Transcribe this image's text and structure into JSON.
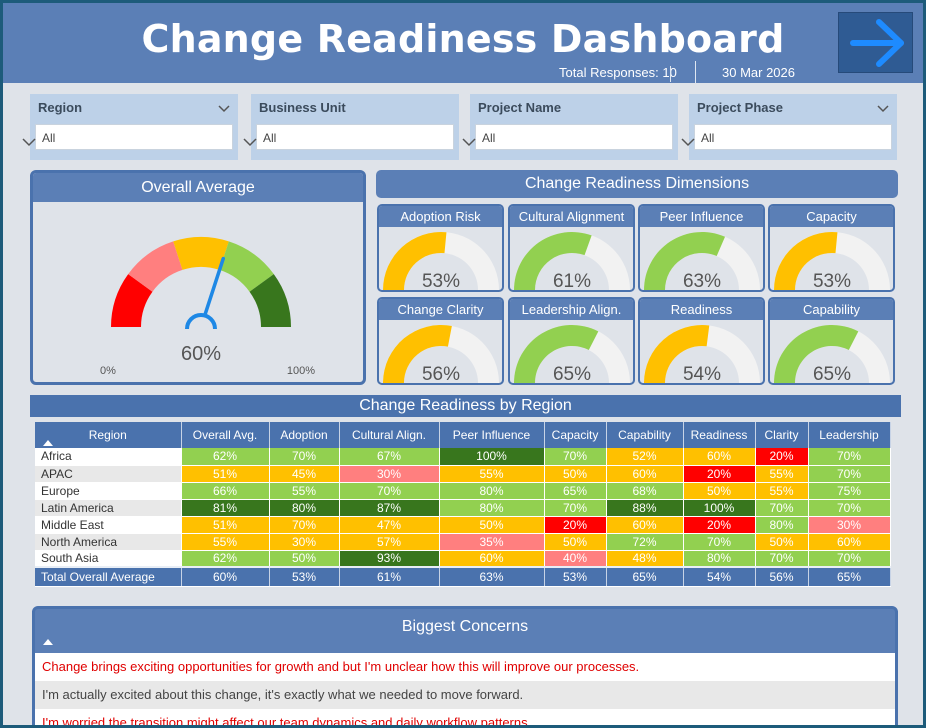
{
  "header": {
    "title": "Change Readiness Dashboard",
    "total_responses": "Total Responses: 10",
    "date": "30 Mar 2026",
    "nav_icon": "arrow-right-icon"
  },
  "filters": [
    {
      "label": "Region",
      "value": "All",
      "has_top_chevron": true
    },
    {
      "label": "Business Unit",
      "value": "All",
      "has_top_chevron": false
    },
    {
      "label": "Project Name",
      "value": "All",
      "has_top_chevron": false
    },
    {
      "label": "Project Phase",
      "value": "All",
      "has_top_chevron": true
    }
  ],
  "overall": {
    "title": "Overall Average",
    "value": 60,
    "value_label": "60%",
    "min_label": "0%",
    "max_label": "100%",
    "band_colors": [
      "#ff0000",
      "#ff7f7f",
      "#ffc000",
      "#92d050",
      "#38761d"
    ],
    "needle_color": "#1e88e5"
  },
  "dimensions": {
    "title": "Change Readiness Dimensions",
    "items": [
      {
        "name": "Adoption Risk",
        "value": 53,
        "label": "53%",
        "color": "#ffc000"
      },
      {
        "name": "Cultural Alignment",
        "value": 61,
        "label": "61%",
        "color": "#92d050"
      },
      {
        "name": "Peer Influence",
        "value": 63,
        "label": "63%",
        "color": "#92d050"
      },
      {
        "name": "Capacity",
        "value": 53,
        "label": "53%",
        "color": "#ffc000"
      },
      {
        "name": "Change Clarity",
        "value": 56,
        "label": "56%",
        "color": "#ffc000"
      },
      {
        "name": "Leadership Align.",
        "value": 65,
        "label": "65%",
        "color": "#92d050"
      },
      {
        "name": "Readiness",
        "value": 54,
        "label": "54%",
        "color": "#ffc000"
      },
      {
        "name": "Capability",
        "value": 65,
        "label": "65%",
        "color": "#92d050"
      }
    ]
  },
  "region_table": {
    "title": "Change Readiness by Region",
    "columns": [
      "Region",
      "Overall Avg.",
      "Adoption",
      "Cultural Align.",
      "Peer Influence",
      "Capacity",
      "Capability",
      "Readiness",
      "Clarity",
      "Leadership"
    ],
    "rows": [
      {
        "region": "Africa",
        "cells": [
          [
            "62%",
            "#92d050"
          ],
          [
            "70%",
            "#92d050"
          ],
          [
            "67%",
            "#92d050"
          ],
          [
            "100%",
            "#38761d"
          ],
          [
            "70%",
            "#92d050"
          ],
          [
            "52%",
            "#ffc000"
          ],
          [
            "60%",
            "#ffc000"
          ],
          [
            "20%",
            "#ff0000"
          ],
          [
            "70%",
            "#92d050"
          ]
        ]
      },
      {
        "region": "APAC",
        "cells": [
          [
            "51%",
            "#ffc000"
          ],
          [
            "45%",
            "#ffc000"
          ],
          [
            "30%",
            "#ff7f7f"
          ],
          [
            "55%",
            "#ffc000"
          ],
          [
            "50%",
            "#ffc000"
          ],
          [
            "60%",
            "#ffc000"
          ],
          [
            "20%",
            "#ff0000"
          ],
          [
            "55%",
            "#ffc000"
          ],
          [
            "70%",
            "#92d050"
          ]
        ]
      },
      {
        "region": "Europe",
        "cells": [
          [
            "66%",
            "#92d050"
          ],
          [
            "55%",
            "#92d050"
          ],
          [
            "70%",
            "#92d050"
          ],
          [
            "80%",
            "#92d050"
          ],
          [
            "65%",
            "#92d050"
          ],
          [
            "68%",
            "#92d050"
          ],
          [
            "50%",
            "#ffc000"
          ],
          [
            "55%",
            "#ffc000"
          ],
          [
            "75%",
            "#92d050"
          ]
        ]
      },
      {
        "region": "Latin America",
        "cells": [
          [
            "81%",
            "#38761d"
          ],
          [
            "80%",
            "#38761d"
          ],
          [
            "87%",
            "#38761d"
          ],
          [
            "80%",
            "#92d050"
          ],
          [
            "70%",
            "#92d050"
          ],
          [
            "88%",
            "#38761d"
          ],
          [
            "100%",
            "#38761d"
          ],
          [
            "70%",
            "#92d050"
          ],
          [
            "70%",
            "#92d050"
          ]
        ]
      },
      {
        "region": "Middle East",
        "cells": [
          [
            "51%",
            "#ffc000"
          ],
          [
            "70%",
            "#ffc000"
          ],
          [
            "47%",
            "#ffc000"
          ],
          [
            "50%",
            "#ffc000"
          ],
          [
            "20%",
            "#ff0000"
          ],
          [
            "60%",
            "#ffc000"
          ],
          [
            "20%",
            "#ff0000"
          ],
          [
            "80%",
            "#92d050"
          ],
          [
            "30%",
            "#ff7f7f"
          ]
        ]
      },
      {
        "region": "North America",
        "cells": [
          [
            "55%",
            "#ffc000"
          ],
          [
            "30%",
            "#ffc000"
          ],
          [
            "57%",
            "#ffc000"
          ],
          [
            "35%",
            "#ff7f7f"
          ],
          [
            "50%",
            "#ffc000"
          ],
          [
            "72%",
            "#92d050"
          ],
          [
            "70%",
            "#92d050"
          ],
          [
            "50%",
            "#ffc000"
          ],
          [
            "60%",
            "#ffc000"
          ]
        ]
      },
      {
        "region": "South Asia",
        "cells": [
          [
            "62%",
            "#92d050"
          ],
          [
            "50%",
            "#92d050"
          ],
          [
            "93%",
            "#38761d"
          ],
          [
            "60%",
            "#ffc000"
          ],
          [
            "40%",
            "#ff7f7f"
          ],
          [
            "48%",
            "#ffc000"
          ],
          [
            "80%",
            "#92d050"
          ],
          [
            "70%",
            "#92d050"
          ],
          [
            "70%",
            "#92d050"
          ]
        ]
      }
    ],
    "total": {
      "label": "Total Overall Average",
      "values": [
        "60%",
        "53%",
        "61%",
        "63%",
        "53%",
        "65%",
        "54%",
        "56%",
        "65%"
      ]
    }
  },
  "concerns": {
    "title": "Biggest Concerns",
    "items": [
      {
        "text": "Change brings exciting opportunities for growth and but I'm unclear how this will improve our processes.",
        "color": "#e00000",
        "bg": "#ffffff"
      },
      {
        "text": "I'm actually excited about this change, it's exactly what we needed to move forward.",
        "color": "#444444",
        "bg": "#e8e8e8"
      },
      {
        "text": "I'm worried the transition might affect our team dynamics and daily workflow patterns.",
        "color": "#e00000",
        "bg": "#ffffff"
      }
    ]
  }
}
